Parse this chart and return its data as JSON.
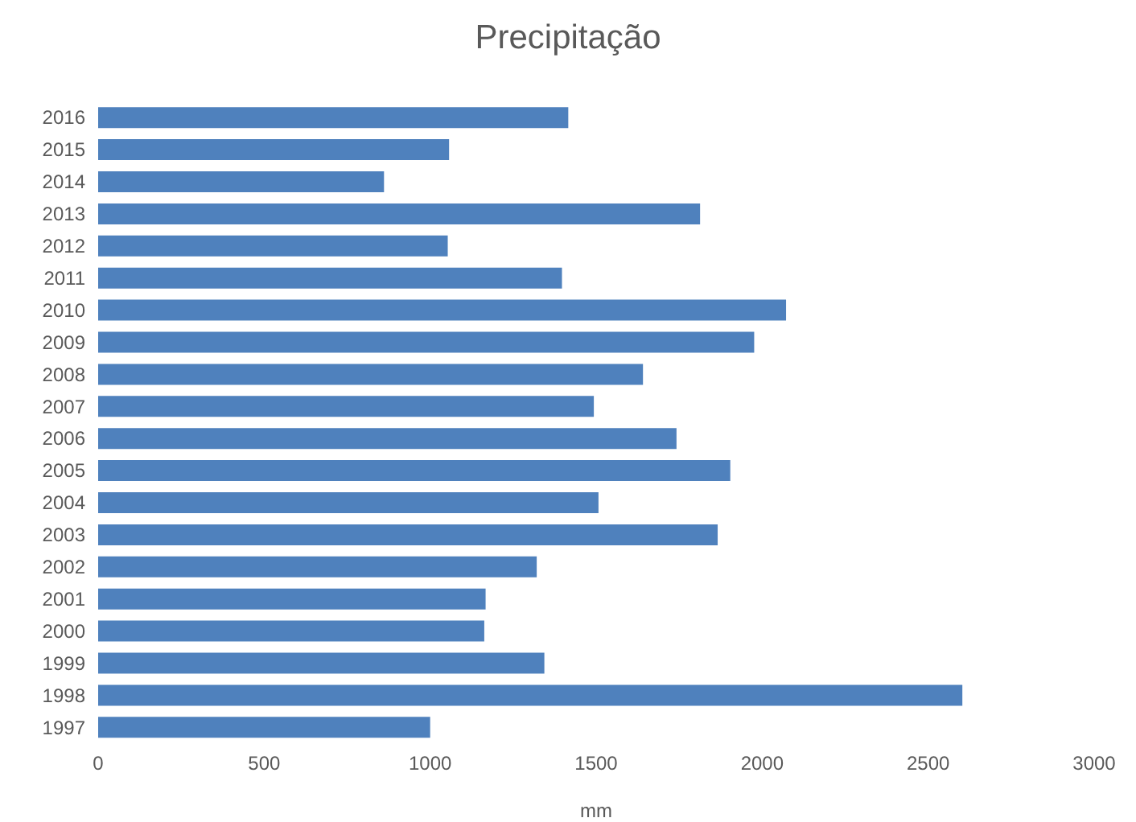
{
  "chart_data": {
    "type": "bar",
    "orientation": "horizontal",
    "title": "Precipitação",
    "xlabel": "mm",
    "categories": [
      "2016",
      "2015",
      "2014",
      "2013",
      "2012",
      "2011",
      "2010",
      "2009",
      "2008",
      "2007",
      "2006",
      "2005",
      "2004",
      "2003",
      "2002",
      "2001",
      "2000",
      "1999",
      "1998",
      "1997"
    ],
    "values": [
      1416,
      1057,
      861,
      1813,
      1053,
      1397,
      2072,
      1976,
      1641,
      1493,
      1742,
      1904,
      1507,
      1866,
      1321,
      1167,
      1163,
      1344,
      2603,
      1000
    ],
    "color": "#4f81bd",
    "xlim": [
      0,
      3000
    ],
    "xticks": [
      0,
      500,
      1000,
      1500,
      2000,
      2500,
      3000
    ],
    "grid": false,
    "legend": false
  }
}
